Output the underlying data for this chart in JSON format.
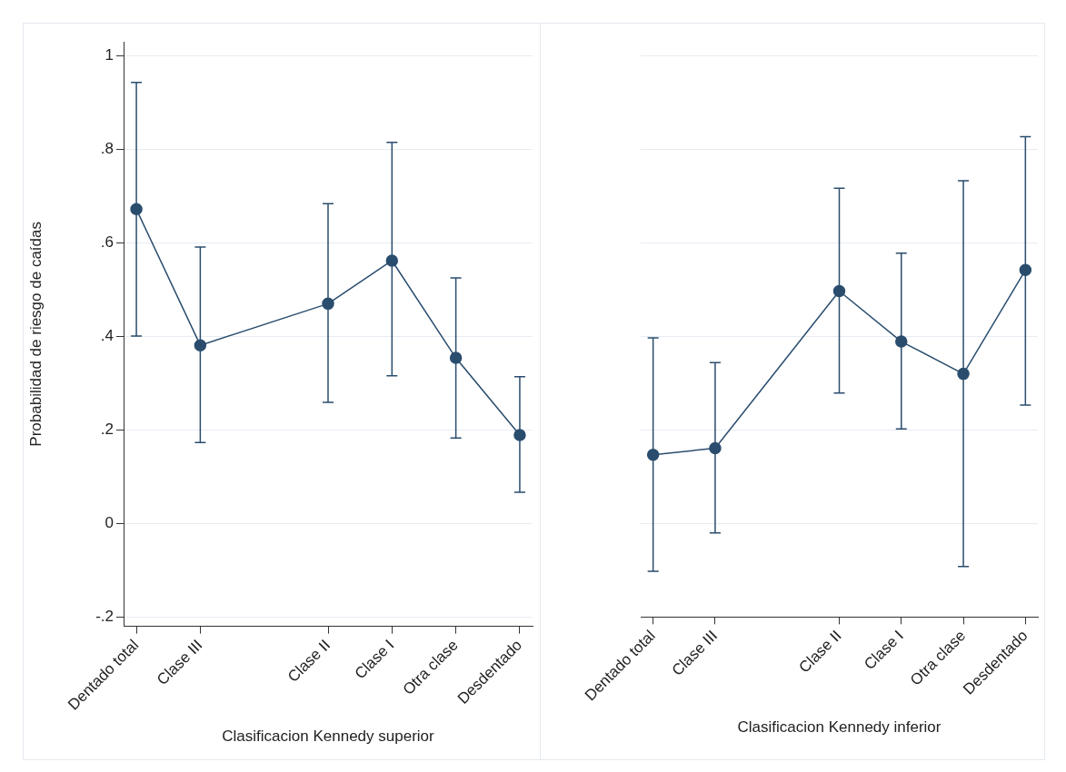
{
  "chart_data": [
    {
      "type": "line",
      "xlabel": "Clasificacion Kennedy superior",
      "ylabel": "Probabilidad de riesgo de caídas",
      "categories": [
        "Dentado total",
        "Clase III",
        null,
        "Clase II",
        "Clase I",
        "Otra clase",
        "Desdentado"
      ],
      "ylim": [
        -0.22,
        1.03
      ],
      "yticks": [
        {
          "value": -0.2,
          "label": "-.2"
        },
        0,
        {
          "value": 0.2,
          "label": ".2"
        },
        {
          "value": 0.4,
          "label": ".4"
        },
        {
          "value": 0.6,
          "label": ".6"
        },
        {
          "value": 0.8,
          "label": ".8"
        },
        1
      ],
      "series": [
        {
          "color": "#2a4d6e",
          "values": [
            0.672,
            0.381,
            null,
            0.47,
            0.562,
            0.354,
            0.189
          ],
          "errors": [
            [
              0.401,
              0.943
            ],
            [
              0.173,
              0.591
            ],
            null,
            [
              0.259,
              0.684
            ],
            [
              0.316,
              0.815
            ],
            [
              0.183,
              0.525
            ],
            [
              0.067,
              0.314
            ]
          ]
        }
      ],
      "grid": "y",
      "marker": "circle",
      "line_style": "solid"
    },
    {
      "type": "line",
      "xlabel": "Clasificacion Kennedy inferior",
      "categories": [
        "Dentado total",
        "Clase III",
        null,
        "Clase II",
        "Clase I",
        "Otra clase",
        "Desdentado"
      ],
      "ylim": [
        -0.2,
        1
      ],
      "yticks": [
        -0.2,
        0,
        0.2,
        0.4,
        0.6,
        0.8,
        1
      ],
      "series": [
        {
          "color": "#2a4d6e",
          "values": [
            0.147,
            0.161,
            null,
            0.497,
            0.389,
            0.32,
            0.542
          ],
          "errors": [
            [
              -0.102,
              0.397
            ],
            [
              -0.02,
              0.344
            ],
            null,
            [
              0.279,
              0.717
            ],
            [
              0.202,
              0.578
            ],
            [
              -0.092,
              0.733
            ],
            [
              0.253,
              0.827
            ]
          ]
        }
      ],
      "grid": "y",
      "marker": "circle",
      "line_style": "solid",
      "tick_labels": "x"
    }
  ]
}
